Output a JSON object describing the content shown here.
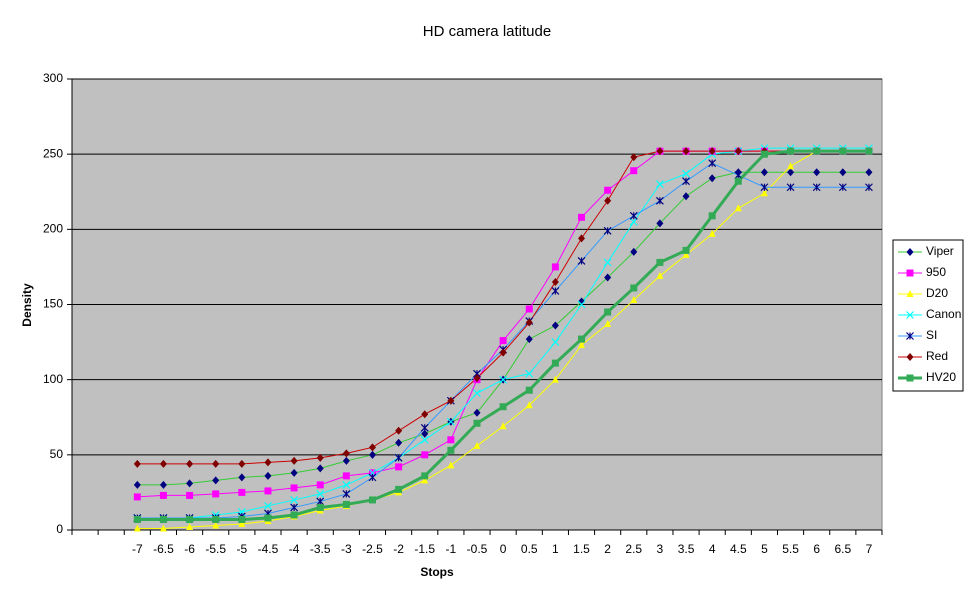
{
  "chart_data": {
    "type": "line",
    "title": "HD camera latitude",
    "x_label": "Stops",
    "y_label": "Density",
    "categories": [
      null,
      null,
      "-7",
      "-6.5",
      "-6",
      "-5.5",
      "-5",
      "-4.5",
      "-4",
      "-3.5",
      "-3",
      "-2.5",
      "-2",
      "-1.5",
      "-1",
      "-0.5",
      "0",
      "0.5",
      "1",
      "1.5",
      "2",
      "2.5",
      "3",
      "3.5",
      "4",
      "4.5",
      "5",
      "5.5",
      "6",
      "6.5",
      "7"
    ],
    "ylim": [
      0,
      300
    ],
    "yticks": [
      0,
      50,
      100,
      150,
      200,
      250,
      300
    ],
    "grid": true,
    "legend": "right",
    "background": "#c0c0c0",
    "series": [
      {
        "name": "Viper",
        "color": "#33cc33",
        "marker_color": "#000080",
        "marker": "diamond",
        "line_width": 1,
        "values": [
          null,
          null,
          30,
          30,
          31,
          33,
          35,
          36,
          38,
          41,
          46,
          50,
          58,
          64,
          72,
          78,
          100,
          127,
          136,
          152,
          168,
          185,
          204,
          222,
          234,
          238,
          238,
          238,
          238,
          238,
          238
        ]
      },
      {
        "name": "950",
        "color": "#ff00ff",
        "marker_color": "#ff00ff",
        "marker": "square",
        "line_width": 1,
        "values": [
          null,
          null,
          22,
          23,
          23,
          24,
          25,
          26,
          28,
          30,
          36,
          38,
          42,
          50,
          60,
          100,
          126,
          147,
          175,
          208,
          226,
          239,
          252,
          252,
          252,
          252,
          252,
          252,
          252,
          252,
          252
        ]
      },
      {
        "name": "D20",
        "color": "#ffff00",
        "marker_color": "#ffff00",
        "marker": "triangle",
        "line_width": 1,
        "values": [
          null,
          null,
          1,
          1,
          2,
          3,
          4,
          6,
          9,
          13,
          16,
          20,
          25,
          33,
          43,
          56,
          69,
          83,
          100,
          123,
          137,
          153,
          169,
          183,
          197,
          214,
          224,
          242,
          252,
          252,
          252
        ]
      },
      {
        "name": "Canon",
        "color": "#00ffff",
        "marker_color": "#00ffff",
        "marker": "x",
        "line_width": 1,
        "values": [
          null,
          null,
          8,
          8,
          8,
          10,
          12,
          16,
          20,
          24,
          30,
          38,
          48,
          60,
          72,
          91,
          100,
          104,
          125,
          150,
          178,
          205,
          230,
          237,
          250,
          252,
          254,
          254,
          254,
          254,
          254
        ]
      },
      {
        "name": "SI",
        "color": "#3399ff",
        "marker_color": "#000080",
        "marker": "star",
        "line_width": 1,
        "values": [
          null,
          null,
          8,
          8,
          8,
          8,
          9,
          11,
          15,
          19,
          24,
          35,
          48,
          68,
          86,
          104,
          120,
          139,
          159,
          179,
          199,
          209,
          219,
          232,
          244,
          236,
          228,
          228,
          228,
          228,
          228
        ]
      },
      {
        "name": "Red",
        "color": "#cc0000",
        "marker_color": "#800000",
        "marker": "diamond",
        "line_width": 1,
        "values": [
          null,
          null,
          44,
          44,
          44,
          44,
          44,
          45,
          46,
          48,
          51,
          55,
          66,
          77,
          86,
          101,
          118,
          138,
          165,
          194,
          219,
          248,
          252,
          252,
          252,
          252,
          252,
          252,
          252,
          252,
          252
        ]
      },
      {
        "name": "HV20",
        "color": "#33aa55",
        "marker_color": "#33aa55",
        "marker": "square",
        "line_width": 3,
        "values": [
          null,
          null,
          7,
          7,
          7,
          7,
          7,
          8,
          10,
          15,
          17,
          20,
          27,
          36,
          53,
          71,
          82,
          93,
          111,
          127,
          145,
          161,
          178,
          186,
          209,
          232,
          250,
          252,
          252,
          252,
          252
        ]
      }
    ]
  }
}
